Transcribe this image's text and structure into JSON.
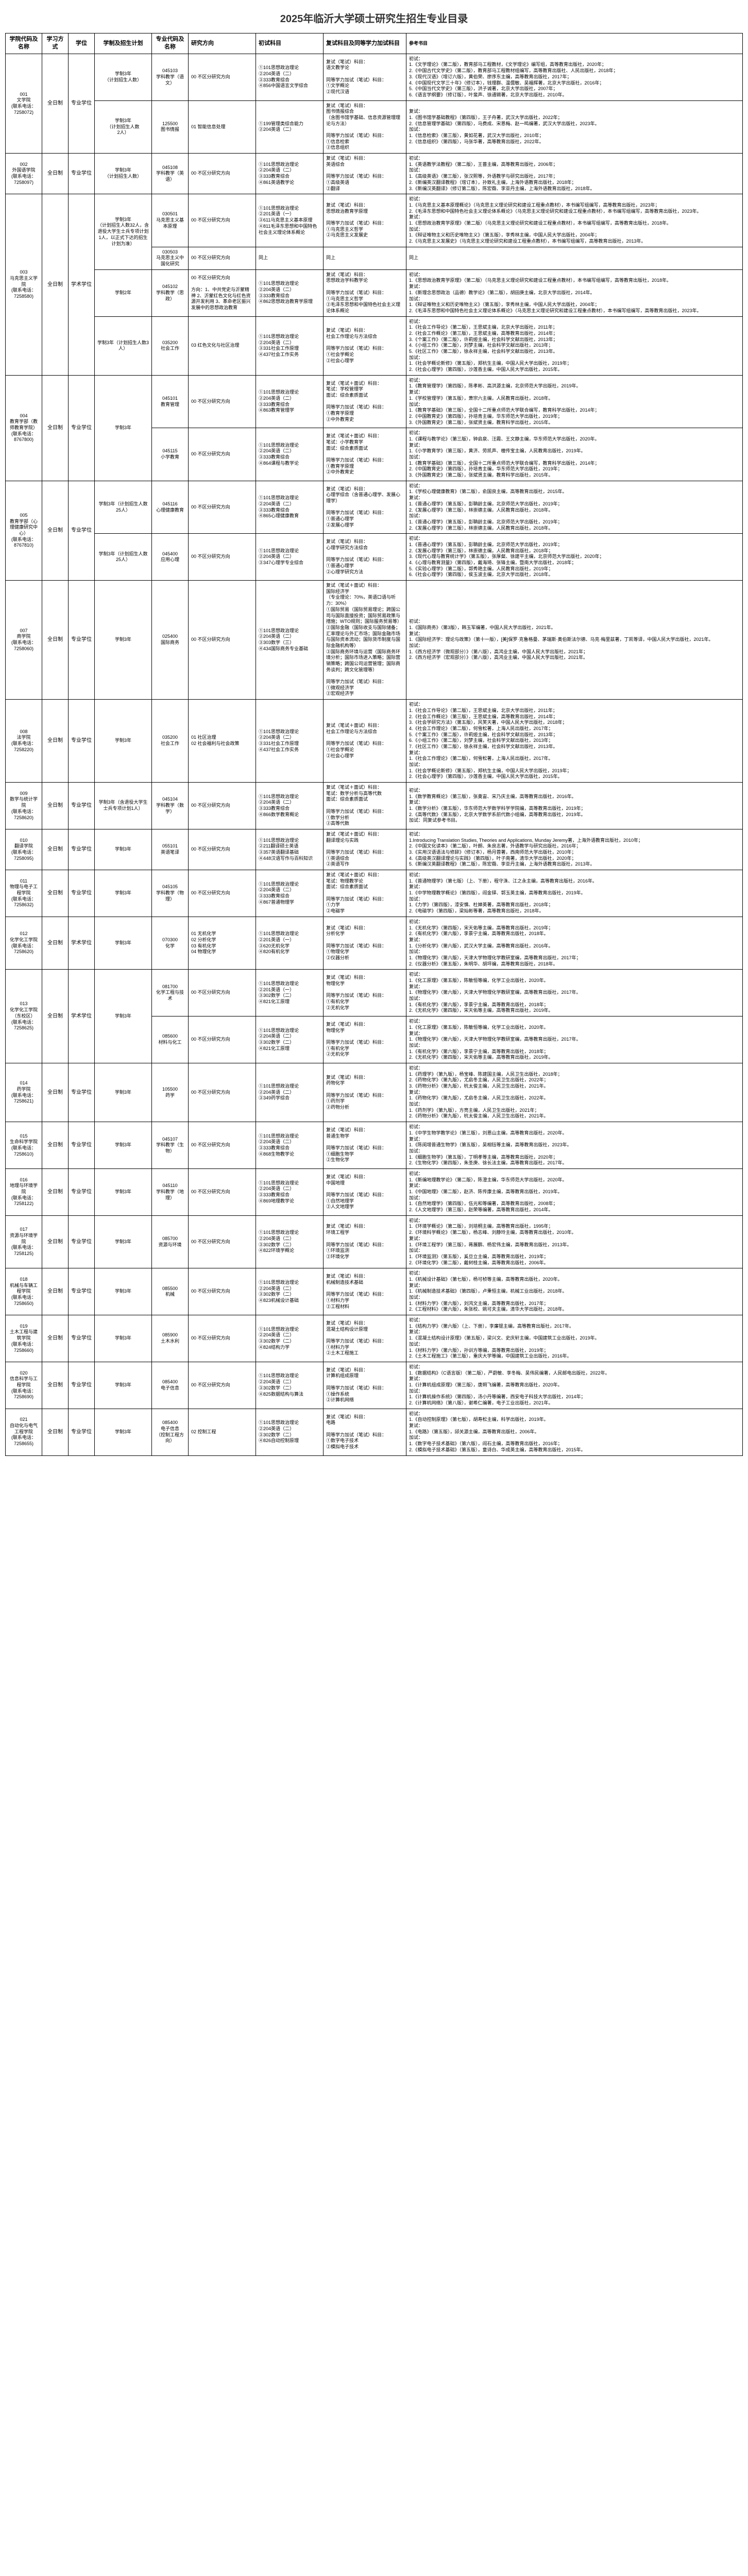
{
  "title": "2025年临沂大学硕士研究生招生专业目录",
  "headers": [
    "学院代码及名称",
    "学习方式",
    "学位",
    "学制及招生计划",
    "专业代码及名称",
    "研究方向",
    "初试科目",
    "复试科目及同等学力加试科目",
    "参考书目"
  ],
  "rows": [
    {
      "college": "001\n文学院\n(联系电话：\n7258072)",
      "mode": "全日制",
      "degree": "专业学位",
      "plans": [
        {
          "plan": "学制3年\n（计划招生人数）",
          "specs": [
            {
              "code": "045103\n学科教学（语文）",
              "dir": "00 不区分研究方向",
              "exam": "①101思想政治理论\n②204英语（二）\n③333教育综合\n④856中国语言文学综合",
              "retest": "复试（笔试）科目：\n语文教学论\n\n同等学力加试（笔试）科目：\n①文学概论\n②现代汉语",
              "ref": "初试：\n1.《文学理论》（第二版），教育部马工程教材，《文学理论》编写组，高等教育出版社，2020年；\n2.《中国古代文学史》（第二版），教育部马工程教材组编写，高等教育出版社、人民出版社，2018年；\n3.《现代汉语》（增订六版），黄伯荣、廖序东主编，高等教育出版社，2017年；\n4.《中国现代文学三十年》（修订本），钱理群、温儒敏、吴福辉著，北京大学出版社，2016年；\n5.《中国当代文学史》（第三版），洪子诚著，北京大学出版社，2007年；\n6.《语言学纲要》（修订版），叶蜚声、徐通锵著，北京大学出版社，2010年。"
            }
          ]
        },
        {
          "plan": "学制3年\n（计划招生人数\n2人）",
          "specs": [
            {
              "code": "125500\n图书情报",
              "dir": "01 智能信息处理",
              "exam": "①199管理类综合能力\n②204英语（二）",
              "retest": "复试（笔试）科目：\n图书情报综合\n（含图书馆学基础、信息资源管理理论与方法）\n\n同等学力加试（笔试）科目：\n①信息检索\n②信息组织",
              "ref": "复试：\n1.《图书馆学基础教程》（第四版），王子舟著，武汉大学出版社，2022年；\n2.《信息管理学基础》（第四版），马费成、宋恩梅、赵一鸣编著，武汉大学出版社，2023年。\n加试：\n1.《信息检索》（第三版），黄如花著，武汉大学出版社，2010年；\n2.《信息组织》（第四版），马张华著，高等教育出版社，2022年。"
            }
          ]
        }
      ]
    },
    {
      "college": "002\n外国语学院\n(联系电话：\n7258097)",
      "mode": "全日制",
      "degree": "专业学位",
      "plans": [
        {
          "plan": "学制3年\n（计划招生人数）",
          "specs": [
            {
              "code": "045108\n学科教学（英语）",
              "dir": "00 不区分研究方向",
              "exam": "①101思想政治理论\n②204英语（二）\n③333教育综合\n④861英语教学论",
              "retest": "复试（笔试）科目：\n英语综合\n\n同等学力加试（笔试）科目：\n①高级英语\n②翻译",
              "ref": "初试：\n1.《英语教学法教程》（第二版），王蔷主编，高等教育出版社，2006年；\n加试：\n1.《高级英语》（第三版），张汉熙等，外语教学与研究出版社，2017年；\n2.《新编英汉翻译教程》（增订本），孙致礼主编，上海外语教育出版社，2018年；\n3.《新编汉英翻译》（修订第二版），陈宏薇、李亚丹主编，上海外语教育出版社，2018年。"
            }
          ]
        }
      ]
    },
    {
      "college": "003\n马克思主义学院\n(联系电话：\n7258580)",
      "mode": "全日制",
      "degree": "学术学位",
      "plans": [
        {
          "plan": "学制3年\n（计划招生人数32人，含退役大学生士兵专项计划1人，以正式下达的招生计划为准）",
          "specs": [
            {
              "code": "030501\n马克思主义基本原理",
              "dir": "00 不区分研究方向",
              "exam": "①101思想政治理论\n②201英语（一）\n③611马克思主义基本原理\n④811毛泽东思想和中国特色社会主义理论体系概论",
              "retest": "复试（笔试）科目：\n思想政治教育学原理\n\n同等学力加试（笔试）科目：\n①马克思主义哲学\n②马克思主义发展史",
              "ref": "初试：\n1.《马克思主义基本原理概论》（马克思主义理论研究和建设工程重点教材），本书编写组编写，高等教育出版社，2023年；\n2.《毛泽东思想和中国特色社会主义理论体系概论》（马克思主义理论研究和建设工程重点教材），本书编写组编写，高等教育出版社，2023年。\n复试：\n1.《思想政治教育学原理》（第二版）（马克思主义理论研究和建设工程重点教材），本书编写组编写，高等教育出版社，2018年。\n加试：\n1.《辩证唯物主义和历史唯物主义》（第五版），李秀林主编，中国人民大学出版社，2004年；\n2.《马克思主义发展史》（马克思主义理论研究和建设工程重点教材），本书编写组编写，高等教育出版社，2013年。"
            },
            {
              "code": "030503\n马克思主义中国化研究",
              "dir": "00 不区分研究方向",
              "exam": "同上",
              "retest": "同上",
              "ref": "同上"
            }
          ]
        },
        {
          "plan": "学制2年",
          "specs": [
            {
              "code": "045102\n学科教学（思政）",
              "dir": "00 不区分研究方向\n\n方向：1、中共党史与沂蒙精神 2、沂蒙红色文化与红色资源开发利用 3、革命老区振兴发展中的思想政治教育",
              "exam": "①101思想政治理论\n②204英语（二）\n③333教育综合\n④862思想政治教育学原理",
              "retest": "复试（笔试）科目：\n思想政治学科教学论\n\n同等学力加试（笔试）科目：\n①马克思主义哲学\n②毛泽东思想和中国特色社会主义理论体系概论",
              "ref": "初试：\n1.《思想政治教育学原理》（第二版）（马克思主义理论研究和建设工程重点教材），本书编写组编写，高等教育出版社，2018年。\n复试：\n1.《新理念思想政治（品德）教学论》（第二版），胡田庚主编，北京大学出版社，2014年。\n加试：\n1.《辩证唯物主义和历史唯物主义》（第五版），李秀林主编，中国人民大学出版社，2004年；\n2.《毛泽东思想和中国特色社会主义理论体系概论》（马克思主义理论研究和建设工程重点教材），本书编写组编写，高等教育出版社，2023年。"
            }
          ]
        },
        {
          "plan": "学制3年（计划招生人数3人）",
          "specs": [
            {
              "code": "035200\n社会工作",
              "dir": "03 红色文化与社区治理",
              "exam": "①101思想政治理论\n②204英语（二）\n③331社会工作原理\n④437社会工作实务",
              "retest": "复试（笔试）科目：\n社会工作理论与方法综合\n\n同等学力加试（笔试）科目：\n①社会学概论\n②社会心理学",
              "ref": "初试：\n1.《社会工作导论》（第二版），王思斌主编，北京大学出版社，2011年；\n2.《社会工作概论》（第三版），王思斌主编，高等教育出版社，2014年；\n3.《个案工作》（第二版），许莉娅主编，社会科学文献出版社，2013年；\n4.《小组工作》（第二版），刘梦主编，社会科学文献出版社，2013年；\n5.《社区工作》（第二版），徐永祥主编，社会科学文献出版社，2013年。\n加试：\n1.《社会学概论新修》（第五版），郑杭生主编，中国人民大学出版社，2019年；\n2.《社会心理学》（第四版），沙莲香主编，中国人民大学出版社，2015年。"
            }
          ]
        }
      ]
    },
    {
      "college": "004\n教育学部（教师教育学院）\n(联系电话：\n8767800)",
      "mode": "全日制",
      "degree": "专业学位",
      "plans": [
        {
          "plan": "学制3年",
          "specs": [
            {
              "code": "045101\n教育管理",
              "dir": "00 不区分研究方向",
              "exam": "①101思想政治理论\n②204英语（二）\n③333教育综合\n④863教育管理学",
              "retest": "复试（笔试＋面试）科目：\n笔试：学校管理学\n面试：综合素质面试\n\n同等学力加试（笔试）科目：\n①教育学原理\n②中外教育史",
              "ref": "初试：\n1.《教育管理学》（第四版），陈孝彬、高洪源主编，北京师范大学出版社，2019年。\n复试：\n1.《学校管理学》（第五版），萧宗六主编，人民教育出版社，2018年。\n加试：\n1.《教育学基础》（第三版），全国十二所重点师范大学联合编写，教育科学出版社，2014年；\n2.《中国教育史》（第四版），孙培青主编，华东师范大学出版社，2019年；\n3.《外国教育史》（第二版），张斌贤主编，教育科学出版社，2015年。"
            },
            {
              "code": "045115\n小学教育",
              "dir": "00 不区分研究方向",
              "exam": "①101思想政治理论\n②204英语（二）\n③333教育综合\n④864课程与教学论",
              "retest": "复试（笔试＋面试）科目：\n笔试：小学教育学\n面试：综合素质面试\n\n同等学力加试（笔试）科目：\n①教育学原理\n②中外教育史",
              "ref": "初试：\n1.《课程与教学论》（第三版），钟启泉、汪霞、王文静主编，华东师范大学出版社，2020年。\n复试：\n1.《小学教育学》（第三版），黄济、劳凯声、檀传宝主编，人民教育出版社，2019年。\n加试：\n1.《教育学基础》（第三版），全国十二所重点师范大学联合编写，教育科学出版社，2014年；\n2.《中国教育史》（第四版），孙培青主编，华东师范大学出版社，2019年；\n3.《外国教育史》（第二版），张斌贤主编，教育科学出版社，2015年。"
            }
          ]
        }
      ]
    },
    {
      "college": "005\n教育学部（心理健康研究中心）\n(联系电话：\n8767810)",
      "mode": "全日制",
      "degree": "专业学位",
      "plans": [
        {
          "plan": "学制3年（计划招生人数25人）",
          "specs": [
            {
              "code": "045116\n心理健康教育",
              "dir": "00 不区分研究方向",
              "exam": "①101思想政治理论\n②204英语（二）\n③333教育综合\n④865心理健康教育",
              "retest": "复试（笔试）科目：\n心理学综合（含普通心理学、发展心理学）\n\n同等学力加试（笔试）科目：\n①普通心理学\n②发展心理学",
              "ref": "初试：\n1.《学校心理健康教育》（第二版），俞国良主编，高等教育出版社，2015年。\n复试：\n1.《普通心理学》（第五版），彭聃龄主编，北京师范大学出版社，2019年；\n2.《发展心理学》（第三版），林崇德主编，人民教育出版社，2018年。\n加试：\n1.《普通心理学》（第五版），彭聃龄主编，北京师范大学出版社，2019年；\n2.《发展心理学》（第三版），林崇德主编，人民教育出版社，2018年。"
            }
          ]
        },
        {
          "plan": "学制3年（计划招生人数25人）",
          "specs": [
            {
              "code": "045400\n应用心理",
              "dir": "00 不区分研究方向",
              "exam": "①101思想政治理论\n②204英语（二）\n③347心理学专业综合",
              "retest": "复试（笔试）科目：\n心理学研究方法综合\n\n同等学力加试（笔试）科目：\n①普通心理学\n②心理学研究方法",
              "ref": "初试：\n1.《普通心理学》（第五版），彭聃龄主编，北京师范大学出版社，2019年；\n2.《发展心理学》（第三版），林崇德主编，人民教育出版社，2018年；\n3.《现代心理与教育统计学》（第五版），张厚粲、徐建平主编，北京师范大学出版社，2020年；\n4.《心理与教育测量》（第四版），戴海琦、张锋主编，暨南大学出版社，2018年；\n5.《实验心理学》（第二版），郭秀艳主编，人民教育出版社，2019年；\n6.《社会心理学》（第四版），侯玉波主编，北京大学出版社，2018年。"
            }
          ]
        }
      ]
    },
    {
      "college": "007\n商学院\n(联系电话：\n7258060)",
      "mode": "全日制",
      "degree": "专业学位",
      "plans": [
        {
          "plan": "学制3年",
          "specs": [
            {
              "code": "025400\n国际商务",
              "dir": "00 不区分研究方向",
              "exam": "①101思想政治理论\n②204英语（二）\n③303数学（三）\n④434国际商务专业基础",
              "retest": "复试（笔试＋面试）科目：\n国际经济学\n（专业理论：70%，英语口语与听力：30%）\n①国际贸易（国际贸易理论；跨国公司与国际直接投资；国际贸易政策与措施；WTO规则；国际服务贸易等）\n②国际金融（国际收支与国际储备；汇率理论与外汇市场；国际金融市场与国际资本流动；国际货币制度与国际金融机构等）\n③国际商务环境与运营（国际商务环境分析；国际市场进入策略；国际营销策略；跨国公司运营管理；国际商务谈判；跨文化管理等）\n\n同等学力加试（笔试）科目：\n①微观经济学\n②宏观经济学",
              "ref": "初试：\n1.《国际商务》（第3版），韩玉军编著，中国人民大学出版社，2021年。\n复试：\n1.《国际经济学：理论与政策》（第十一版），[美]保罗·克鲁格曼、茅瑞斯·奥伯斯法尔德、马克·梅里兹著，丁凯等译，中国人民大学出版社，2021年。\n加试：\n1.《西方经济学（微观部分）》（第八版），高鸿业主编，中国人民大学出版社，2021年；\n2.《西方经济学（宏观部分）》（第八版），高鸿业主编，中国人民大学出版社，2021年。"
            }
          ]
        }
      ]
    },
    {
      "college": "008\n法学院\n(联系电话：\n7258220)",
      "mode": "全日制",
      "degree": "专业学位",
      "plans": [
        {
          "plan": "学制3年",
          "specs": [
            {
              "code": "035200\n社会工作",
              "dir": "01 社区治理\n02 社会福利与社会政策",
              "exam": "①101思想政治理论\n②204英语（二）\n③331社会工作原理\n④437社会工作实务",
              "retest": "复试（笔试＋面试）科目：\n社会工作理论与方法综合\n\n同等学力加试（笔试）科目：\n①社会学概论\n②社会心理学",
              "ref": "初试：\n1.《社会工作导论》（第二版），王思斌主编，北京大学出版社，2011年；\n2.《社会工作概论》（第三版），王思斌主编，高等教育出版社，2014年；\n3.《社会学研究方法》（第五版），风笑天著，中国人民大学出版社，2018年；\n4.《社会工作理论》（第二版），何雪松著，上海人民出版社，2017年；\n5.《个案工作》（第二版），许莉娅主编，社会科学文献出版社，2013年；\n6.《小组工作》（第二版），刘梦主编，社会科学文献出版社，2013年；\n7.《社区工作》（第二版），徐永祥主编，社会科学文献出版社，2013年。\n复试：\n1.《社会工作理论》（第二版），何雪松著，上海人民出版社，2017年。\n加试：\n1.《社会学概论新修》（第五版），郑杭生主编，中国人民大学出版社，2019年；\n2.《社会心理学》（第四版），沙莲香主编，中国人民大学出版社，2015年。"
            }
          ]
        }
      ]
    },
    {
      "college": "009\n数学与统计学院\n(联系电话：\n7258620)",
      "mode": "全日制",
      "degree": "专业学位",
      "plans": [
        {
          "plan": "学制3年（含退役大学生士兵专项计划1人）",
          "specs": [
            {
              "code": "045104\n学科教学（数学）",
              "dir": "00 不区分研究方向",
              "exam": "①101思想政治理论\n②204英语（二）\n③333教育综合\n④866数学教育概论",
              "retest": "复试（笔试＋面试）科目：\n笔试：数学分析与高等代数\n面试：综合素质面试\n\n同等学力加试（笔试）科目：\n①数学分析\n②高等代数",
              "ref": "初试：\n1.《数学教育概论》（第三版），张奠宙、宋乃庆主编，高等教育出版社，2016年。\n复试：\n1.《数学分析》（第五版），华东师范大学数学科学学院编，高等教育出版社，2019年；\n2.《高等代数》（第五版），北京大学数学系前代数小组编，高等教育出版社，2019年。\n加试：同复试参考书目。"
            }
          ]
        }
      ]
    },
    {
      "college": "010\n翻译学院\n(联系电话：\n7258095)",
      "mode": "全日制",
      "degree": "专业学位",
      "plans": [
        {
          "plan": "学制3年",
          "specs": [
            {
              "code": "055101\n英语笔译",
              "dir": "00 不区分研究方向",
              "exam": "①101思想政治理论\n②211翻译硕士英语\n③357英语翻译基础\n④448汉语写作与百科知识",
              "retest": "复试（笔试＋面试）科目：\n翻译理论与实践\n\n同等学力加试（笔试）科目：\n①英语综合\n②英语写作",
              "ref": "初试：\n1.Introducing Translation Studies, Theories and Applications, Munday Jeremy著，上海外语教育出版社，2010年；\n2.《中国文化读本》（第二版），叶朗、朱良志著，外语教学与研究出版社，2016年；\n3.《实用汉语语法与修辞》（修订本），杨月蓉著，西南师范大学出版社，2010年；\n4.《高级英汉翻译理论与实践》（第四版），叶子南著，清华大学出版社，2020年；\n5.《新编汉英翻译教程》（第二版），陈宏薇、李亚丹主编，上海外语教育出版社，2013年。"
            }
          ]
        }
      ]
    },
    {
      "college": "011\n物理与电子工程学院\n(联系电话：\n7258632)",
      "mode": "全日制",
      "degree": "专业学位",
      "plans": [
        {
          "plan": "学制3年",
          "specs": [
            {
              "code": "045105\n学科教学（物理）",
              "dir": "00 不区分研究方向",
              "exam": "①101思想政治理论\n②204英语（二）\n③333教育综合\n④867普通物理学",
              "retest": "复试（笔试＋面试）科目：\n笔试：物理教学论\n面试：综合素质面试\n\n同等学力加试（笔试）科目：\n①力学\n②电磁学",
              "ref": "初试：\n1.《普通物理学》（第七版）（上、下册），程守洙、江之永主编，高等教育出版社，2016年。\n复试：\n1.《中学物理教学概论》（第四版），阎金铎、郭玉英主编，高等教育出版社，2019年。\n加试：\n1.《力学》（第四版），漆安慎、杜婵英著，高等教育出版社，2018年；\n2.《电磁学》（第四版），梁灿彬等著，高等教育出版社，2018年。"
            }
          ]
        }
      ]
    },
    {
      "college": "012\n化学化工学院\n(联系电话：\n7258620)",
      "mode": "全日制",
      "degree": "学术学位",
      "plans": [
        {
          "plan": "学制3年",
          "specs": [
            {
              "code": "070300\n化学",
              "dir": "01 无机化学\n02 分析化学\n03 有机化学\n04 物理化学",
              "exam": "①101思想政治理论\n②201英语（一）\n③620无机化学\n④820有机化学",
              "retest": "复试（笔试）科目：\n分析化学\n\n同等学力加试（笔试）科目：\n①物理化学\n②仪器分析",
              "ref": "初试：\n1.《无机化学》（第四版），宋天佑等主编，高等教育出版社，2019年；\n2.《有机化学》（第六版），李景宁主编，高等教育出版社，2018年。\n复试：\n1.《分析化学》（第六版），武汉大学主编，高等教育出版社，2016年。\n加试：\n1.《物理化学》（第六版），天津大学物理化学教研室编，高等教育出版社，2017年；\n2.《仪器分析》（第五版），朱明华、胡坪编，高等教育出版社，2018年。"
            }
          ]
        }
      ]
    },
    {
      "college": "013\n化学化工学院（东校区）\n(联系电话：\n7258625)",
      "mode": "全日制",
      "degree": "学术学位",
      "plans": [
        {
          "plan": "学制3年",
          "specs": [
            {
              "code": "081700\n化学工程与技术",
              "dir": "00 不区分研究方向",
              "exam": "①101思想政治理论\n②201英语（一）\n③302数学（二）\n④821化工原理",
              "retest": "复试（笔试）科目：\n物理化学\n\n同等学力加试（笔试）科目：\n①有机化学\n②无机化学",
              "ref": "初试：\n1.《化工原理》（第五版），陈敏恒等编，化学工业出版社，2020年。\n复试：\n1.《物理化学》（第六版），天津大学物理化学教研室编，高等教育出版社，2017年。\n加试：\n1.《有机化学》（第六版），李景宁主编，高等教育出版社，2018年；\n2.《无机化学》（第四版），宋天佑等主编，高等教育出版社，2019年。"
            },
            {
              "code": "085600\n材料与化工",
              "dir": "00 不区分研究方向",
              "exam": "①101思想政治理论\n②204英语（二）\n③302数学（二）\n④821化工原理",
              "retest": "复试（笔试）科目：\n物理化学\n\n同等学力加试（笔试）科目：\n①有机化学\n②无机化学",
              "ref": "初试：\n1.《化工原理》（第五版），陈敏恒等编，化学工业出版社，2020年。\n复试：\n1.《物理化学》（第六版），天津大学物理化学教研室编，高等教育出版社，2017年。\n加试：\n1.《有机化学》（第六版），李景宁主编，高等教育出版社，2018年；\n2.《无机化学》（第四版），宋天佑等主编，高等教育出版社，2019年。"
            }
          ]
        }
      ]
    },
    {
      "college": "014\n药学院\n(联系电话：\n7258621)",
      "mode": "全日制",
      "degree": "专业学位",
      "plans": [
        {
          "plan": "学制3年",
          "specs": [
            {
              "code": "105500\n药学",
              "dir": "00 不区分研究方向",
              "exam": "①101思想政治理论\n②204英语（二）\n③349药学综合",
              "retest": "复试（笔试）科目：\n药物化学\n\n同等学力加试（笔试）科目：\n①药剂学\n②药物分析",
              "ref": "初试：\n1.《药理学》（第九版），杨宝峰、陈建国主编，人民卫生出版社，2018年；\n2.《药物化学》（第九版），尤启冬主编，人民卫生出版社，2022年；\n3.《药物分析》（第九版），杭太俊主编，人民卫生出版社，2021年。\n复试：\n1.《药物化学》（第九版），尤启冬主编，人民卫生出版社，2022年。\n加试：\n1.《药剂学》（第九版），方亮主编，人民卫生出版社，2021年；\n2.《药物分析》（第九版），杭太俊主编，人民卫生出版社，2021年。"
            }
          ]
        }
      ]
    },
    {
      "college": "015\n生命科学学院\n(联系电话：\n7258610)",
      "mode": "全日制",
      "degree": "专业学位",
      "plans": [
        {
          "plan": "学制3年",
          "specs": [
            {
              "code": "045107\n学科教学（生物）",
              "dir": "00 不区分研究方向",
              "exam": "①101思想政治理论\n②204英语（二）\n③333教育综合\n④868生物教学论",
              "retest": "复试（笔试）科目：\n普通生物学\n\n同等学力加试（笔试）科目：\n①细胞生物学\n②生物化学",
              "ref": "初试：\n1.《中学生物学教学论》（第三版），刘恩山主编，高等教育出版社，2020年。\n复试：\n1.《陈阅增普通生物学》（第五版），吴相钰等主编，高等教育出版社，2023年。\n加试：\n1.《细胞生物学》（第五版），丁明孝等主编，高等教育出版社，2020年；\n2.《生物化学》（第四版），朱圣庚、徐长法主编，高等教育出版社，2017年。"
            }
          ]
        }
      ]
    },
    {
      "college": "016\n地理与环境学院\n(联系电话：\n7258122)",
      "mode": "全日制",
      "degree": "专业学位",
      "plans": [
        {
          "plan": "学制3年",
          "specs": [
            {
              "code": "045110\n学科教学（地理）",
              "dir": "00 不区分研究方向",
              "exam": "①101思想政治理论\n②204英语（二）\n③333教育综合\n④869地理教学论",
              "retest": "复试（笔试）科目：\n中国地理\n\n同等学力加试（笔试）科目：\n①自然地理学\n②人文地理学",
              "ref": "初试：\n1.《新编地理教学论》（第二版），陈澄主编，华东师范大学出版社，2020年。\n复试：\n1.《中国地理》（第二版），赵济、陈传康主编，高等教育出版社，2019年。\n加试：\n1.《自然地理学》（第四版），伍光和等编著，高等教育出版社，2008年；\n2.《人文地理学》（第三版），赵荣等编著，高等教育出版社，2014年。"
            }
          ]
        }
      ]
    },
    {
      "college": "017\n资源与环境学院\n(联系电话：\n7258125)",
      "mode": "全日制",
      "degree": "专业学位",
      "plans": [
        {
          "plan": "学制3年",
          "specs": [
            {
              "code": "085700\n资源与环境",
              "dir": "00 不区分研究方向",
              "exam": "①101思想政治理论\n②204英语（二）\n③302数学（二）\n④822环境学概论",
              "retest": "复试（笔试）科目：\n环境工程学\n\n同等学力加试（笔试）科目：\n①环境监测\n②环境化学",
              "ref": "初试：\n1.《环境学概论》（第二版），刘培桐主编，高等教育出版社，1995年；\n2.《环境科学概论》（第二版），杨志峰、刘静玲主编，高等教育出版社，2010年。\n复试：\n1.《环境工程学》（第三版），蒋展鹏、杨宏伟主编，高等教育出版社，2013年。\n加试：\n1.《环境监测》（第五版），奚旦立主编，高等教育出版社，2019年；\n2.《环境化学》（第二版），戴树桂主编，高等教育出版社，2006年。"
            }
          ]
        }
      ]
    },
    {
      "college": "018\n机械与车辆工程学院\n(联系电话：\n7258650)",
      "mode": "全日制",
      "degree": "专业学位",
      "plans": [
        {
          "plan": "学制3年",
          "specs": [
            {
              "code": "085500\n机械",
              "dir": "00 不区分研究方向",
              "exam": "①101思想政治理论\n②204英语（二）\n③302数学（二）\n④823机械设计基础",
              "retest": "复试（笔试）科目：\n机械制造技术基础\n\n同等学力加试（笔试）科目：\n①材料力学\n②工程材料",
              "ref": "初试：\n1.《机械设计基础》（第七版），杨可桢等主编，高等教育出版社，2020年。\n复试：\n1.《机械制造技术基础》（第四版），卢秉恒主编，机械工业出版社，2018年。\n加试：\n1.《材料力学》（第六版），刘鸿文主编，高等教育出版社，2017年；\n2.《工程材料》（第六版），朱张校、姚可夫主编，清华大学出版社，2018年。"
            }
          ]
        }
      ]
    },
    {
      "college": "019\n土木工程与建筑学院\n(联系电话：\n7258660)",
      "mode": "全日制",
      "degree": "专业学位",
      "plans": [
        {
          "plan": "学制3年",
          "specs": [
            {
              "code": "085900\n土木水利",
              "dir": "00 不区分研究方向",
              "exam": "①101思想政治理论\n②204英语（二）\n③302数学（二）\n④824结构力学",
              "retest": "复试（笔试）科目：\n混凝土结构设计原理\n\n同等学力加试（笔试）科目：\n①材料力学\n②土木工程施工",
              "ref": "初试：\n1.《结构力学》（第六版）（上、下册），李廉锟主编，高等教育出版社，2017年。\n复试：\n1.《混凝土结构设计原理》（第五版），梁兴文、史庆轩主编，中国建筑工业出版社，2019年。\n加试：\n1.《材料力学》（第六版），孙训方等编，高等教育出版社，2019年；\n2.《土木工程施工》（第三版），重庆大学等编，中国建筑工业出版社，2016年。"
            }
          ]
        }
      ]
    },
    {
      "college": "020\n信息科学与工程学院\n(联系电话：\n7258690)",
      "mode": "全日制",
      "degree": "专业学位",
      "plans": [
        {
          "plan": "学制3年",
          "specs": [
            {
              "code": "085400\n电子信息",
              "dir": "00 不区分研究方向",
              "exam": "①101思想政治理论\n②204英语（二）\n③302数学（二）\n④825数据结构与算法",
              "retest": "复试（笔试）科目：\n计算机组成原理\n\n同等学力加试（笔试）科目：\n①操作系统\n②计算机网络",
              "ref": "初试：\n1.《数据结构》（C语言版）（第二版），严蔚敏、李冬梅、吴伟民编著，人民邮电出版社，2022年。\n复试：\n1.《计算机组成原理》（第三版），唐朔飞编著，高等教育出版社，2020年。\n加试：\n1.《计算机操作系统》（第四版），汤小丹等编著，西安电子科技大学出版社，2014年；\n2.《计算机网络》（第八版），谢希仁编著，电子工业出版社，2021年。"
            }
          ]
        }
      ]
    },
    {
      "college": "021\n自动化与电气工程学院\n(联系电话：\n7258655)",
      "mode": "全日制",
      "degree": "专业学位",
      "plans": [
        {
          "plan": "学制3年",
          "specs": [
            {
              "code": "085400\n电子信息\n（控制工程方向）",
              "dir": "02 控制工程",
              "exam": "①101思想政治理论\n②204英语（二）\n③302数学（二）\n④826自动控制原理",
              "retest": "复试（笔试）科目：\n电路\n\n同等学力加试（笔试）科目：\n①数字电子技术\n②模拟电子技术",
              "ref": "初试：\n1.《自动控制原理》（第七版），胡寿松主编，科学出版社，2019年。\n复试：\n1.《电路》（第五版），邱关源主编，高等教育出版社，2006年。\n加试：\n1.《数字电子技术基础》（第六版），阎石主编，高等教育出版社，2016年；\n2.《模拟电子技术基础》（第五版），童诗白、华成英主编，高等教育出版社，2015年。"
            }
          ]
        }
      ]
    }
  ]
}
